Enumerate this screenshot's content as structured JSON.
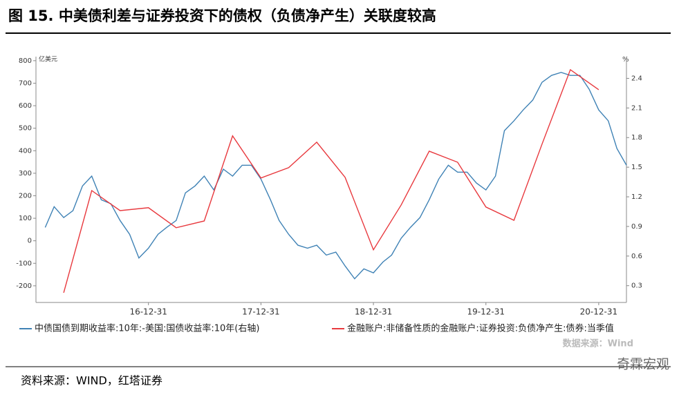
{
  "chart_data": {
    "type": "line",
    "title": "图 15. 中美债利差与证券投资下的债权（负债净产生）关联度较高",
    "y_label": "亿美元",
    "y2_label": "%",
    "annotations": [
      "数据来源：Wind"
    ],
    "xlim": [
      "2016-01-01",
      "2021-03-31"
    ],
    "xticks": [
      {
        "value": "2016-12-31",
        "label": "16-12-31"
      },
      {
        "value": "2017-12-31",
        "label": "17-12-31"
      },
      {
        "value": "2018-12-31",
        "label": "18-12-31"
      },
      {
        "value": "2019-12-31",
        "label": "19-12-31"
      },
      {
        "value": "2020-12-31",
        "label": "20-12-31"
      }
    ],
    "ylim": [
      -274,
      818
    ],
    "yticks": [
      -200,
      -100,
      0,
      100,
      200,
      300,
      400,
      500,
      600,
      700,
      800
    ],
    "y2lim": [
      0.13,
      2.62
    ],
    "y2ticks": [
      0.3,
      0.6,
      0.9,
      1.2,
      1.5,
      1.8,
      2.1,
      2.4
    ],
    "grid": false,
    "series": [
      {
        "name": "中债国债到期收益率:10年:-美国:国债收益率:10年(右轴)",
        "color": "#3f82b5",
        "axis": "y2",
        "x": [
          "2016-01-31",
          "2016-02-29",
          "2016-03-31",
          "2016-04-30",
          "2016-05-31",
          "2016-06-30",
          "2016-07-31",
          "2016-08-31",
          "2016-09-30",
          "2016-10-31",
          "2016-11-30",
          "2016-12-31",
          "2017-01-31",
          "2017-02-28",
          "2017-03-31",
          "2017-04-30",
          "2017-05-31",
          "2017-06-30",
          "2017-07-31",
          "2017-08-31",
          "2017-09-30",
          "2017-10-31",
          "2017-11-30",
          "2017-12-31",
          "2018-01-31",
          "2018-02-28",
          "2018-03-31",
          "2018-04-30",
          "2018-05-31",
          "2018-06-30",
          "2018-07-31",
          "2018-08-31",
          "2018-09-30",
          "2018-10-31",
          "2018-11-30",
          "2018-12-31",
          "2019-01-31",
          "2019-02-28",
          "2019-03-31",
          "2019-04-30",
          "2019-05-31",
          "2019-06-30",
          "2019-07-31",
          "2019-08-31",
          "2019-09-30",
          "2019-10-31",
          "2019-11-30",
          "2019-12-31",
          "2020-01-31",
          "2020-02-29",
          "2020-03-31",
          "2020-04-30",
          "2020-05-31",
          "2020-06-30",
          "2020-07-31",
          "2020-08-31",
          "2020-09-30",
          "2020-10-31",
          "2020-11-30",
          "2020-12-31",
          "2021-01-31",
          "2021-02-28",
          "2021-03-31"
        ],
        "values": [
          0.89,
          1.1,
          0.99,
          1.06,
          1.31,
          1.41,
          1.17,
          1.13,
          0.96,
          0.82,
          0.58,
          0.68,
          0.82,
          0.89,
          0.96,
          1.24,
          1.31,
          1.41,
          1.27,
          1.48,
          1.41,
          1.52,
          1.52,
          1.38,
          1.17,
          0.96,
          0.82,
          0.71,
          0.68,
          0.71,
          0.61,
          0.64,
          0.5,
          0.37,
          0.47,
          0.43,
          0.54,
          0.61,
          0.78,
          0.89,
          0.99,
          1.17,
          1.38,
          1.52,
          1.45,
          1.45,
          1.34,
          1.27,
          1.41,
          1.87,
          1.97,
          2.08,
          2.18,
          2.36,
          2.43,
          2.46,
          2.43,
          2.43,
          2.29,
          2.08,
          1.97,
          1.69,
          1.52
        ]
      },
      {
        "name": "金融账户:非储备性质的金融账户:证券投资:负债净产生:债券:当季值",
        "color": "#e8383d",
        "x": [
          "2016-03-31",
          "2016-06-30",
          "2016-09-30",
          "2016-12-31",
          "2017-03-31",
          "2017-06-30",
          "2017-09-30",
          "2017-12-31",
          "2018-03-31",
          "2018-06-30",
          "2018-09-30",
          "2018-12-31",
          "2019-03-31",
          "2019-06-30",
          "2019-09-30",
          "2019-12-31",
          "2020-03-31",
          "2020-06-30",
          "2020-09-30",
          "2020-12-31"
        ],
        "values": [
          -231,
          223,
          134,
          147,
          58,
          88,
          466,
          279,
          325,
          438,
          282,
          -40,
          159,
          398,
          349,
          150,
          91,
          429,
          760,
          671
        ]
      }
    ]
  },
  "footer": "资料来源：WIND，红塔证券",
  "watermark": "奇霖宏观"
}
